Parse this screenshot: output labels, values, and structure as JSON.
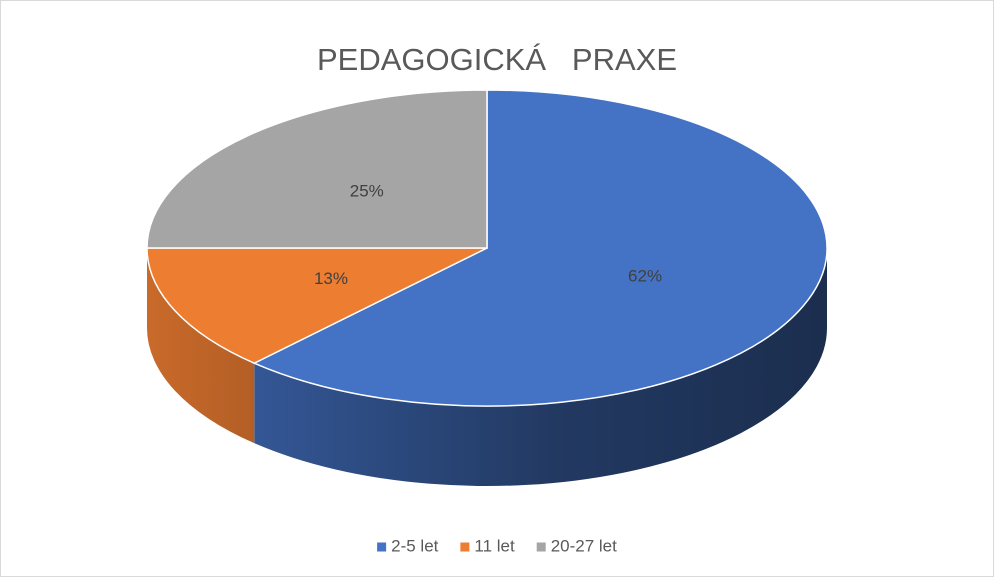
{
  "chart_data": {
    "type": "pie",
    "title": "PEDAGOGICKÁ   PRAXE",
    "categories": [
      "2-5 let",
      "11 let",
      "20-27 let"
    ],
    "values": [
      62,
      13,
      25
    ],
    "value_labels": [
      "62%",
      "13%",
      "25%"
    ],
    "colors": [
      "#4472c4",
      "#ed7d31",
      "#a5a5a5"
    ],
    "legend": "bottom"
  }
}
